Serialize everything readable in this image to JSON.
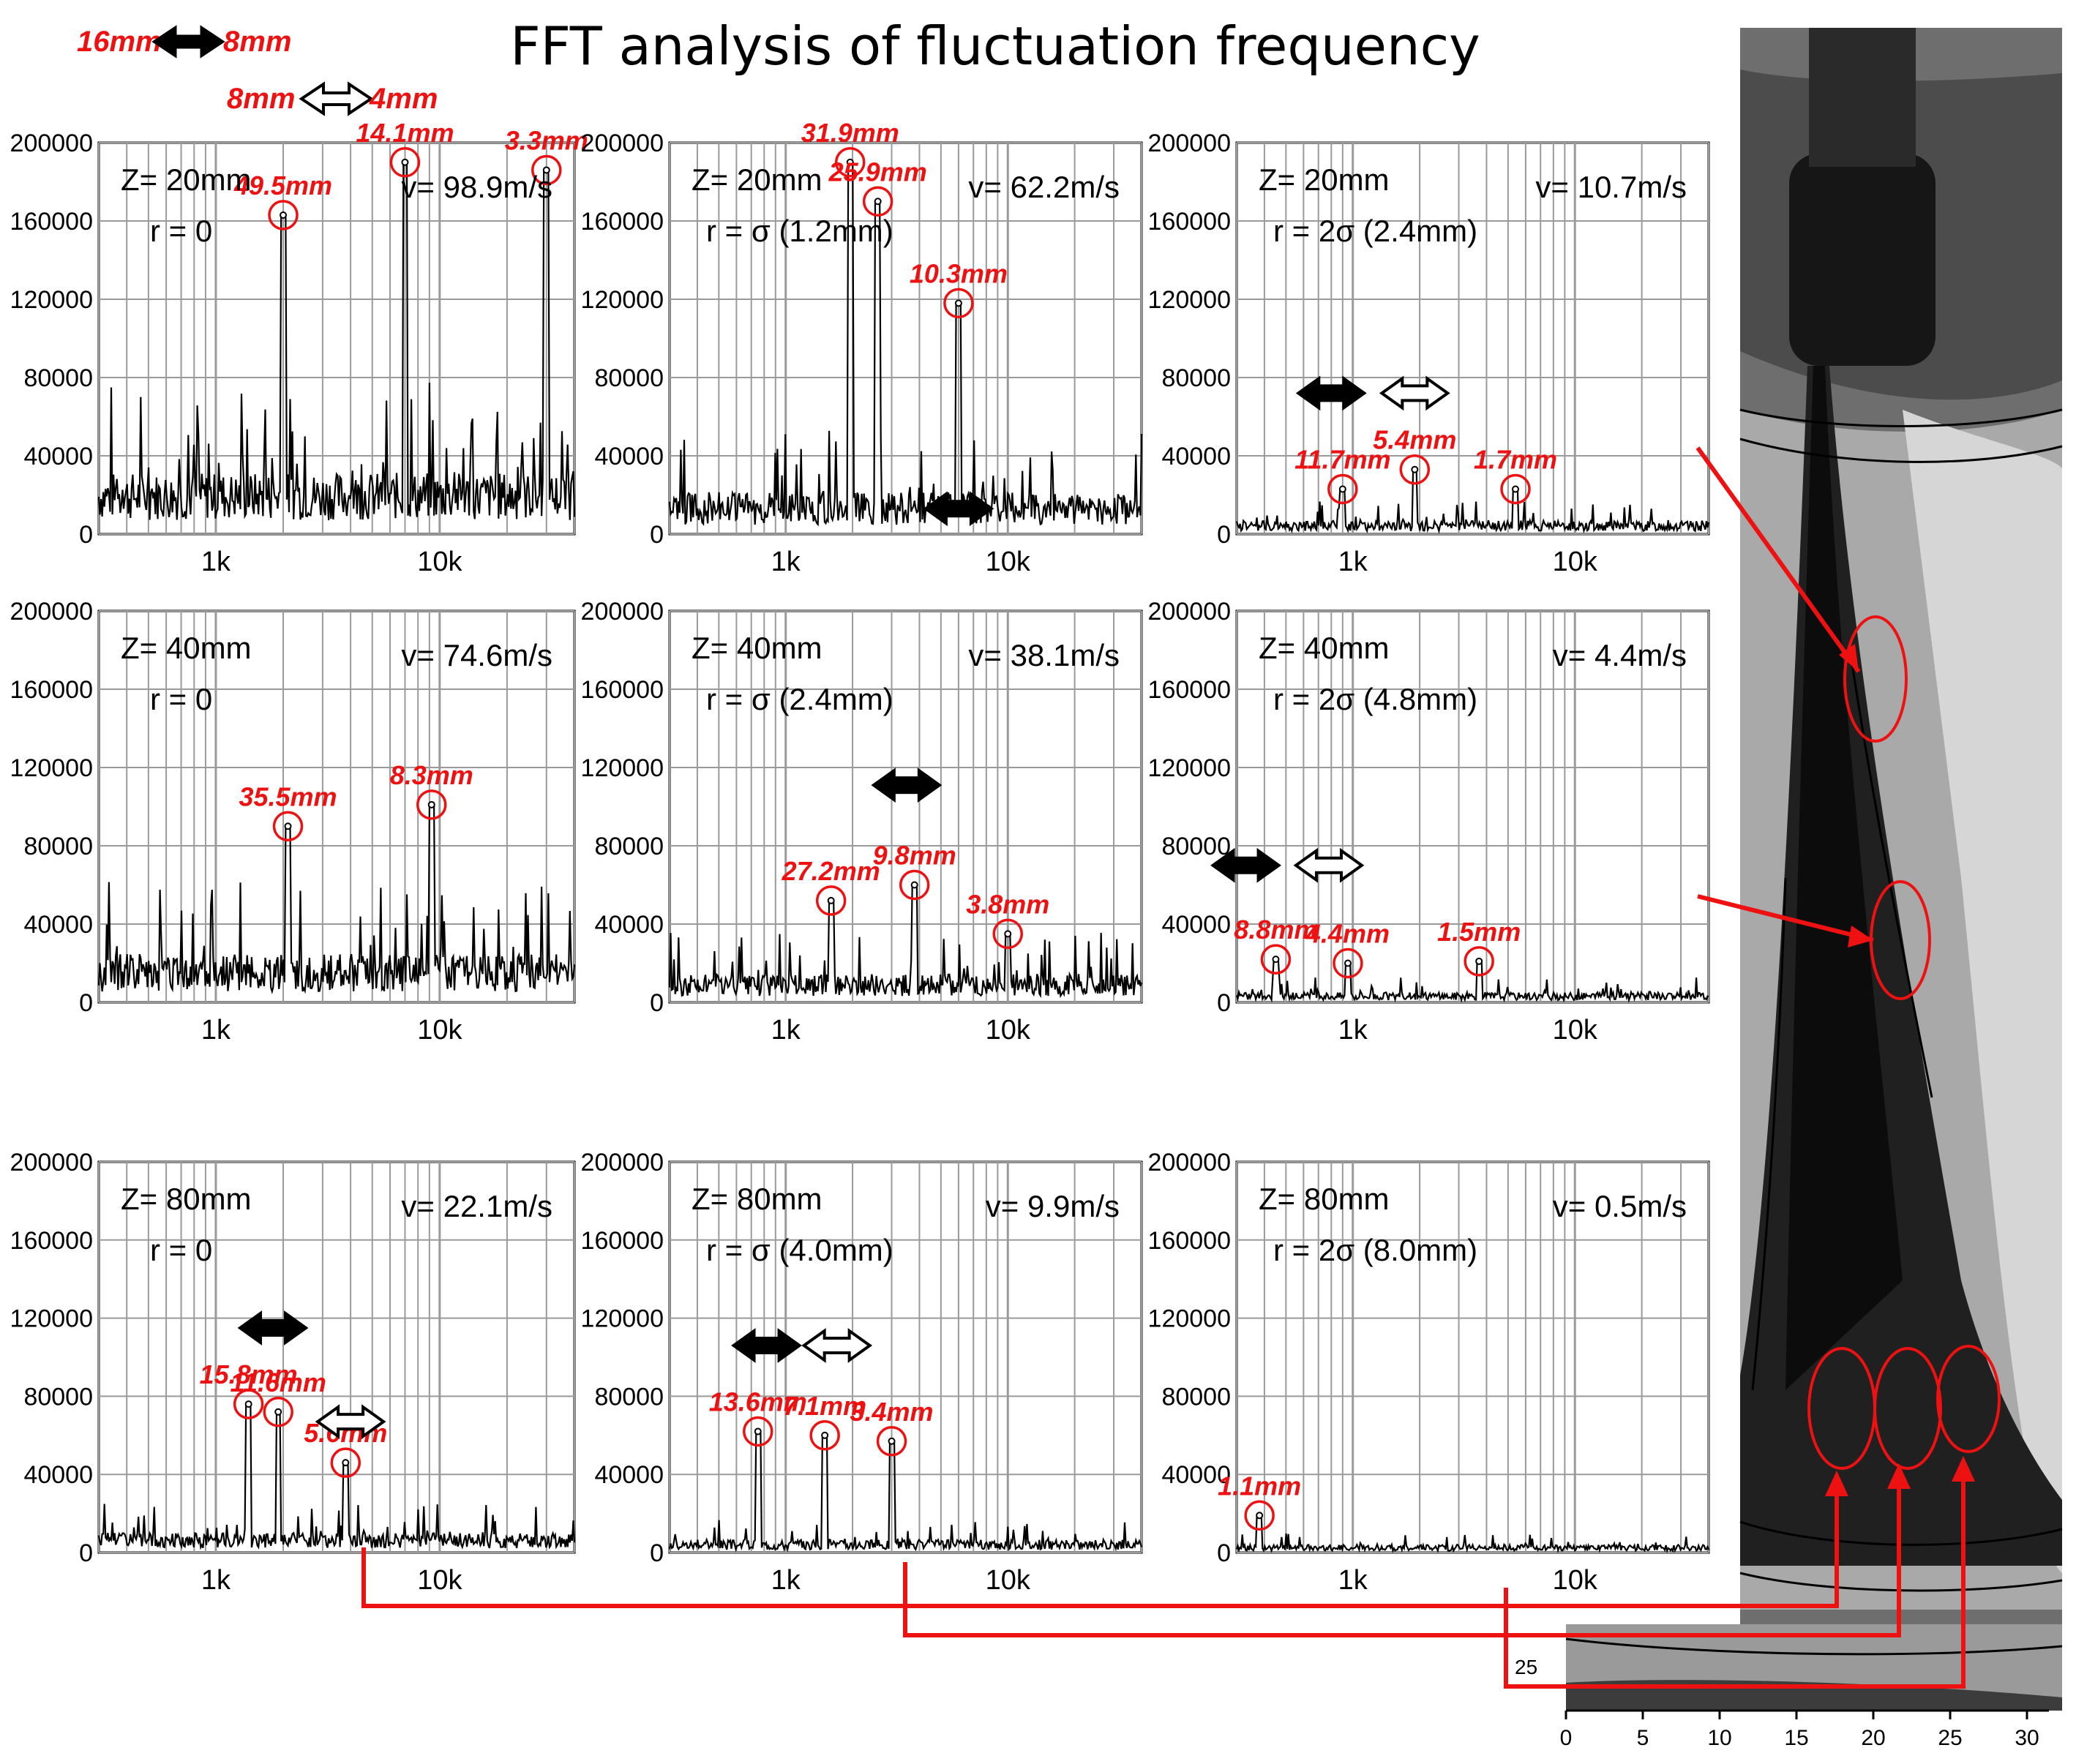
{
  "title": "FFT analysis of fluctuation frequency",
  "legend_scale": [
    {
      "style": "solid",
      "left": "16mm",
      "right": "8mm"
    },
    {
      "style": "hollow",
      "left": "8mm",
      "right": "4mm"
    }
  ],
  "chart_data": [
    {
      "type": "line",
      "row": 0,
      "col": 0,
      "z": "Z= 20mm",
      "r": "r = 0",
      "v": "v= 98.9m/s",
      "x_log": true,
      "ylim": [
        0,
        200000
      ],
      "y_ticks": [
        "0",
        "40000",
        "80000",
        "120000",
        "160000",
        "200000"
      ],
      "x_ticks": [
        "1k",
        "10k"
      ],
      "peaks": [
        {
          "label": "49.5mm",
          "freq": 2000,
          "amp": 163000
        },
        {
          "label": "14.1mm",
          "freq": 7000,
          "amp": 190000
        },
        {
          "label": "3.3mm",
          "freq": 30000,
          "amp": 186000
        }
      ],
      "arrows": []
    },
    {
      "type": "line",
      "row": 0,
      "col": 1,
      "z": "Z= 20mm",
      "r": "r = σ (1.2mm)",
      "v": "v= 62.2m/s",
      "x_log": true,
      "ylim": [
        0,
        200000
      ],
      "y_ticks": [
        "0",
        "40000",
        "80000",
        "120000",
        "160000",
        "200000"
      ],
      "x_ticks": [
        "1k",
        "10k"
      ],
      "peaks": [
        {
          "label": "31.9mm",
          "freq": 1950,
          "amp": 190000
        },
        {
          "label": "25.9mm",
          "freq": 2600,
          "amp": 170000
        },
        {
          "label": "10.3mm",
          "freq": 6000,
          "amp": 118000
        }
      ],
      "arrows": [
        {
          "style": "solid",
          "freq": 6000,
          "amp": 13000
        }
      ]
    },
    {
      "type": "line",
      "row": 0,
      "col": 2,
      "z": "Z= 20mm",
      "r": "r = 2σ (2.4mm)",
      "v": "v= 10.7m/s",
      "x_log": true,
      "ylim": [
        0,
        200000
      ],
      "y_ticks": [
        "0",
        "40000",
        "80000",
        "120000",
        "160000",
        "200000"
      ],
      "x_ticks": [
        "1k",
        "10k"
      ],
      "peaks": [
        {
          "label": "11.7mm",
          "freq": 900,
          "amp": 23000
        },
        {
          "label": "5.4mm",
          "freq": 1900,
          "amp": 33000
        },
        {
          "label": "1.7mm",
          "freq": 5400,
          "amp": 23000
        }
      ],
      "arrows": [
        {
          "style": "solid",
          "freq": 800,
          "amp": 72000
        },
        {
          "style": "hollow",
          "freq": 1900,
          "amp": 72000
        }
      ]
    },
    {
      "type": "line",
      "row": 1,
      "col": 0,
      "z": "Z= 40mm",
      "r": "r = 0",
      "v": "v= 74.6m/s",
      "x_log": true,
      "ylim": [
        0,
        200000
      ],
      "y_ticks": [
        "0",
        "40000",
        "80000",
        "120000",
        "160000",
        "200000"
      ],
      "x_ticks": [
        "1k",
        "10k"
      ],
      "peaks": [
        {
          "label": "35.5mm",
          "freq": 2100,
          "amp": 90000
        },
        {
          "label": "8.3mm",
          "freq": 9200,
          "amp": 101000
        }
      ],
      "arrows": []
    },
    {
      "type": "line",
      "row": 1,
      "col": 1,
      "z": "Z= 40mm",
      "r": "r = σ (2.4mm)",
      "v": "v= 38.1m/s",
      "x_log": true,
      "ylim": [
        0,
        200000
      ],
      "y_ticks": [
        "0",
        "40000",
        "80000",
        "120000",
        "160000",
        "200000"
      ],
      "x_ticks": [
        "1k",
        "10k"
      ],
      "peaks": [
        {
          "label": "27.2mm",
          "freq": 1600,
          "amp": 52000
        },
        {
          "label": "9.8mm",
          "freq": 3800,
          "amp": 60000
        },
        {
          "label": "3.8mm",
          "freq": 10000,
          "amp": 35000
        }
      ],
      "arrows": [
        {
          "style": "solid",
          "freq": 3500,
          "amp": 111000
        }
      ]
    },
    {
      "type": "line",
      "row": 1,
      "col": 2,
      "z": "Z= 40mm",
      "r": "r = 2σ (4.8mm)",
      "v": "v= 4.4m/s",
      "x_log": true,
      "ylim": [
        0,
        200000
      ],
      "y_ticks": [
        "0",
        "40000",
        "80000",
        "120000",
        "160000",
        "200000"
      ],
      "x_ticks": [
        "1k",
        "10k"
      ],
      "peaks": [
        {
          "label": "8.8mm",
          "freq": 450,
          "amp": 22000
        },
        {
          "label": "4.4mm",
          "freq": 950,
          "amp": 20000
        },
        {
          "label": "1.5mm",
          "freq": 3700,
          "amp": 21000
        }
      ],
      "arrows": [
        {
          "style": "solid",
          "freq": 330,
          "amp": 70000
        },
        {
          "style": "hollow",
          "freq": 780,
          "amp": 70000
        }
      ]
    },
    {
      "type": "line",
      "row": 2,
      "col": 0,
      "z": "Z= 80mm",
      "r": "r = 0",
      "v": "v= 22.1m/s",
      "x_log": true,
      "ylim": [
        0,
        200000
      ],
      "y_ticks": [
        "0",
        "40000",
        "80000",
        "120000",
        "160000",
        "200000"
      ],
      "x_ticks": [
        "1k",
        "10k"
      ],
      "peaks": [
        {
          "label": "15.8mm",
          "freq": 1400,
          "amp": 76000
        },
        {
          "label": "11.6mm",
          "freq": 1900,
          "amp": 72000
        },
        {
          "label": "5.6mm",
          "freq": 3800,
          "amp": 46000
        }
      ],
      "arrows": [
        {
          "style": "solid",
          "freq": 1800,
          "amp": 115000
        },
        {
          "style": "hollow",
          "freq": 4000,
          "amp": 67000
        }
      ]
    },
    {
      "type": "line",
      "row": 2,
      "col": 1,
      "z": "Z= 80mm",
      "r": "r = σ (4.0mm)",
      "v": "v= 9.9m/s",
      "x_log": true,
      "ylim": [
        0,
        200000
      ],
      "y_ticks": [
        "0",
        "40000",
        "80000",
        "120000",
        "160000",
        "200000"
      ],
      "x_ticks": [
        "1k",
        "10k"
      ],
      "peaks": [
        {
          "label": "13.6mm",
          "freq": 750,
          "amp": 62000
        },
        {
          "label": "7.1mm",
          "freq": 1500,
          "amp": 60000
        },
        {
          "label": "3.4mm",
          "freq": 3000,
          "amp": 57000
        }
      ],
      "arrows": [
        {
          "style": "solid",
          "freq": 820,
          "amp": 106000
        },
        {
          "style": "hollow",
          "freq": 1700,
          "amp": 106000
        }
      ]
    },
    {
      "type": "line",
      "row": 2,
      "col": 2,
      "z": "Z= 80mm",
      "r": "r = 2σ (8.0mm)",
      "v": "v= 0.5m/s",
      "x_log": true,
      "ylim": [
        0,
        200000
      ],
      "y_ticks": [
        "0",
        "40000",
        "80000",
        "120000",
        "160000",
        "200000"
      ],
      "x_ticks": [
        "1k",
        "10k"
      ],
      "peaks": [
        {
          "label": "1.1mm",
          "freq": 380,
          "amp": 19000
        }
      ],
      "arrows": []
    }
  ],
  "photo": {
    "x_ticks": [
      "0",
      "5",
      "10",
      "15",
      "20",
      "25",
      "30"
    ],
    "side_tick": "25",
    "ylabel": ""
  }
}
